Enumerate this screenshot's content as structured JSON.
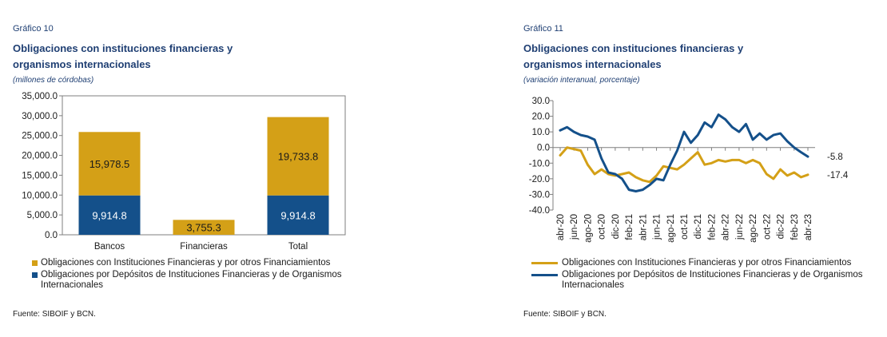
{
  "left": {
    "number": "Gráfico 10",
    "title_line1": "Obligaciones con instituciones financieras y",
    "title_line2": "organismos internacionales",
    "subtitle": "(millones de córdobas)",
    "source": "Fuente: SIBOIF y BCN.",
    "legend": [
      {
        "label": "Obligaciones con Instituciones Financieras y por otros Financiamientos",
        "color": "#d4a017"
      },
      {
        "label": "Obligaciones por Depósitos de Instituciones Financieras y de Organismos Internacionales",
        "color": "#14508a"
      }
    ]
  },
  "right": {
    "number": "Gráfico 11",
    "title_line1": "Obligaciones con instituciones financieras y",
    "title_line2": "organismos internacionales",
    "subtitle": "(variación interanual, porcentaje)",
    "source": "Fuente: SIBOIF y BCN.",
    "legend": [
      {
        "label": "Obligaciones con Instituciones Financieras y por otros Financiamientos",
        "color": "#d4a017"
      },
      {
        "label": "Obligaciones por Depósitos de Instituciones Financieras y de Organismos Internacionales",
        "color": "#14508a"
      }
    ]
  },
  "chart_data": [
    {
      "type": "bar",
      "stacked": true,
      "categories": [
        "Bancos",
        "Financieras",
        "Total"
      ],
      "ylim": [
        0,
        35000
      ],
      "yticks": [
        "0.0",
        "5,000.0",
        "10,000.0",
        "15,000.0",
        "20,000.0",
        "25,000.0",
        "30,000.0",
        "35,000.0"
      ],
      "series": [
        {
          "name": "Obligaciones por Depósitos de Instituciones Financieras y de Organismos Internacionales",
          "color": "#14508a",
          "values": [
            9914.8,
            0,
            9914.8
          ],
          "labels": [
            "9,914.8",
            "",
            "9,914.8"
          ]
        },
        {
          "name": "Obligaciones con Instituciones Financieras y por otros Financiamientos",
          "color": "#d4a017",
          "values": [
            15978.5,
            3755.3,
            19733.8
          ],
          "labels": [
            "15,978.5",
            "3,755.3",
            "19,733.8"
          ]
        }
      ]
    },
    {
      "type": "line",
      "ylim": [
        -40,
        30
      ],
      "yticks": [
        "30.0",
        "20.0",
        "10.0",
        "0.0",
        "-10.0",
        "-20.0",
        "-30.0",
        "-40.0"
      ],
      "x": [
        "abr-20",
        "may-20",
        "jun-20",
        "jul-20",
        "ago-20",
        "sep-20",
        "oct-20",
        "nov-20",
        "dic-20",
        "ene-21",
        "feb-21",
        "mar-21",
        "abr-21",
        "may-21",
        "jun-21",
        "jul-21",
        "ago-21",
        "sep-21",
        "oct-21",
        "nov-21",
        "dic-21",
        "ene-22",
        "feb-22",
        "mar-22",
        "abr-22",
        "may-22",
        "jun-22",
        "jul-22",
        "ago-22",
        "sep-22",
        "oct-22",
        "nov-22",
        "dic-22",
        "ene-23",
        "feb-23",
        "mar-23",
        "abr-23"
      ],
      "xticks": [
        "abr-20",
        "jun-20",
        "ago-20",
        "oct-20",
        "dic-20",
        "feb-21",
        "abr-21",
        "jun-21",
        "ago-21",
        "oct-21",
        "dic-21",
        "feb-22",
        "abr-22",
        "jun-22",
        "ago-22",
        "oct-22",
        "dic-22",
        "feb-23",
        "abr-23"
      ],
      "series": [
        {
          "name": "Obligaciones con Instituciones Financieras y por otros Financiamientos",
          "color": "#d4a017",
          "values": [
            -5,
            0,
            -1,
            -2,
            -11,
            -17,
            -14,
            -17,
            -18,
            -17,
            -16,
            -19,
            -21,
            -22,
            -18,
            -12,
            -13,
            -14,
            -11,
            -7,
            -3,
            -11,
            -10,
            -8,
            -9,
            -8,
            -8,
            -10,
            -8,
            -10,
            -17,
            -20,
            -14,
            -18,
            -16,
            -19,
            -17.4
          ],
          "end_label": "-17.4"
        },
        {
          "name": "Obligaciones por Depósitos de Instituciones Financieras y de Organismos Internacionales",
          "color": "#14508a",
          "values": [
            11,
            13,
            10,
            8,
            7,
            5,
            -7,
            -16,
            -17,
            -20,
            -27,
            -28,
            -27,
            -24,
            -20,
            -21,
            -11,
            -2,
            10,
            3,
            8,
            16,
            13,
            21,
            18,
            13,
            10,
            15,
            5,
            9,
            5,
            8,
            9,
            4,
            0,
            -3,
            -5.8
          ],
          "end_label": "-5.8"
        }
      ]
    }
  ]
}
